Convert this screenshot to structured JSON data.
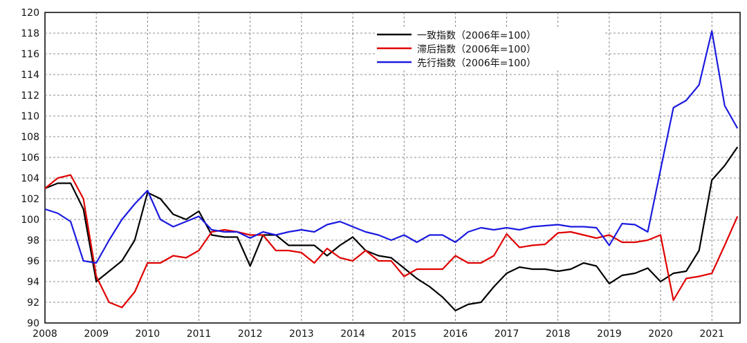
{
  "chart_data": {
    "type": "line",
    "x": [
      2008,
      2008.25,
      2008.5,
      2008.75,
      2009,
      2009.25,
      2009.5,
      2009.75,
      2010,
      2010.25,
      2010.5,
      2010.75,
      2011,
      2011.25,
      2011.5,
      2011.75,
      2012,
      2012.25,
      2012.5,
      2012.75,
      2013,
      2013.25,
      2013.5,
      2013.75,
      2014,
      2014.25,
      2014.5,
      2014.75,
      2015,
      2015.25,
      2015.5,
      2015.75,
      2016,
      2016.25,
      2016.5,
      2016.75,
      2017,
      2017.25,
      2017.5,
      2017.75,
      2018,
      2018.25,
      2018.5,
      2018.75,
      2019,
      2019.25,
      2019.5,
      2019.75,
      2020,
      2020.25,
      2020.5,
      2020.75,
      2021,
      2021.25,
      2021.5
    ],
    "series": [
      {
        "name": "一致指数（2006年=100）",
        "color": "#000000",
        "values": [
          103,
          103.5,
          103.5,
          101,
          94,
          95,
          96,
          98,
          102.6,
          102,
          100.5,
          100,
          100.8,
          98.5,
          98.3,
          98.3,
          95.5,
          98.5,
          98.5,
          97.5,
          97.5,
          97.5,
          96.5,
          97.5,
          98.3,
          97,
          96.5,
          96.3,
          95.3,
          94.3,
          93.5,
          92.5,
          91.2,
          91.8,
          92,
          93.5,
          94.8,
          95.4,
          95.2,
          95.2,
          95,
          95.2,
          95.8,
          95.5,
          93.8,
          94.6,
          94.8,
          95.3,
          94,
          94.8,
          95,
          97,
          103.8,
          105.2,
          107
        ]
      },
      {
        "name": "滞后指数（2006年=100）",
        "color": "#e00000",
        "values": [
          103,
          104,
          104.3,
          102,
          94.5,
          92,
          91.5,
          93,
          95.8,
          95.8,
          96.5,
          96.3,
          97,
          98.8,
          99,
          98.8,
          98.5,
          98.5,
          97,
          97,
          96.8,
          95.8,
          97.2,
          96.3,
          96,
          97,
          96,
          96,
          94.5,
          95.2,
          95.2,
          95.2,
          96.5,
          95.8,
          95.8,
          96.5,
          98.6,
          97.3,
          97.5,
          97.6,
          98.7,
          98.8,
          98.5,
          98.2,
          98.5,
          97.8,
          97.8,
          98,
          98.5,
          92.2,
          94.3,
          94.5,
          94.8,
          97.5,
          100.3
        ]
      },
      {
        "name": "先行指数（2006年=100）",
        "color": "#1a1ae0",
        "values": [
          101,
          100.6,
          99.8,
          96,
          95.8,
          98,
          100,
          101.5,
          102.8,
          100,
          99.3,
          99.8,
          100.3,
          99,
          98.8,
          98.8,
          98.2,
          98.8,
          98.5,
          98.8,
          99,
          98.8,
          99.5,
          99.8,
          99.3,
          98.8,
          98.5,
          98,
          98.5,
          97.8,
          98.5,
          98.5,
          97.8,
          98.8,
          99.2,
          99,
          99.2,
          99,
          99.3,
          99.4,
          99.5,
          99.3,
          99.3,
          99.2,
          97.5,
          99.6,
          99.5,
          98.8,
          104.8,
          110.8,
          111.5,
          113,
          118.2,
          111,
          108.8
        ]
      }
    ],
    "xlim": [
      2008,
      2021.55
    ],
    "xticks": [
      2008,
      2009,
      2010,
      2011,
      2012,
      2013,
      2014,
      2015,
      2016,
      2017,
      2018,
      2019,
      2020,
      2021
    ],
    "ylim": [
      90,
      120
    ],
    "yticks": [
      90,
      92,
      94,
      96,
      98,
      100,
      102,
      104,
      106,
      108,
      110,
      112,
      114,
      116,
      118,
      120
    ],
    "grid": true,
    "legend": "top-center"
  }
}
